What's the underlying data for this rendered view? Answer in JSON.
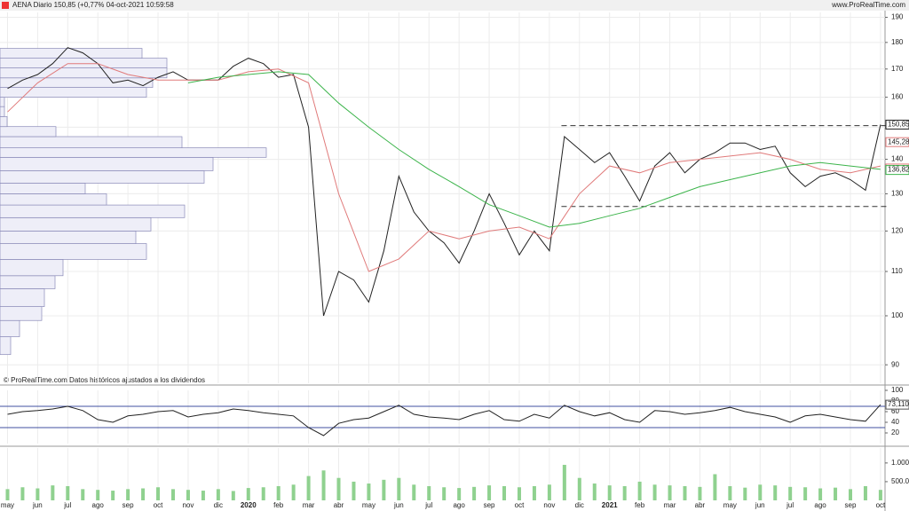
{
  "header": {
    "title": "AENA Diario 150,85 (+0,77% 04-oct-2021 10:59:58",
    "source": "www.ProRealTime.com"
  },
  "chart_data": [
    {
      "type": "line",
      "annotation": "© ProRealTime.com Datos históricos ajustados a los dividendos",
      "log_scale": true,
      "grid": true,
      "xlim": [
        -0.25,
        29.15
      ],
      "xticks": [
        {
          "value": 0,
          "label": "may"
        },
        {
          "value": 1,
          "label": "jun"
        },
        {
          "value": 2,
          "label": "jul"
        },
        {
          "value": 3,
          "label": "ago"
        },
        {
          "value": 4,
          "label": "sep"
        },
        {
          "value": 5,
          "label": "oct"
        },
        {
          "value": 6,
          "label": "nov"
        },
        {
          "value": 7,
          "label": "dic"
        },
        {
          "value": 8,
          "label": "2020"
        },
        {
          "value": 9,
          "label": "feb"
        },
        {
          "value": 10,
          "label": "mar"
        },
        {
          "value": 11,
          "label": "abr"
        },
        {
          "value": 12,
          "label": "may"
        },
        {
          "value": 13,
          "label": "jun"
        },
        {
          "value": 14,
          "label": "jul"
        },
        {
          "value": 15,
          "label": "ago"
        },
        {
          "value": 16,
          "label": "sep"
        },
        {
          "value": 17,
          "label": "oct"
        },
        {
          "value": 18,
          "label": "nov"
        },
        {
          "value": 19,
          "label": "dic"
        },
        {
          "value": 20,
          "label": "2021"
        },
        {
          "value": 21,
          "label": "feb"
        },
        {
          "value": 22,
          "label": "mar"
        },
        {
          "value": 23,
          "label": "abr"
        },
        {
          "value": 24,
          "label": "may"
        },
        {
          "value": 25,
          "label": "jun"
        },
        {
          "value": 26,
          "label": "jul"
        },
        {
          "value": 27,
          "label": "ago"
        },
        {
          "value": 28,
          "label": "sep"
        },
        {
          "value": 29,
          "label": "oct"
        }
      ],
      "ylim": [
        86.5,
        192
      ],
      "yticks": [
        90,
        100,
        110,
        120,
        130,
        140,
        150,
        160,
        170,
        180,
        190
      ],
      "series": [
        {
          "color": "#222222",
          "x": [
            0,
            0.5,
            1,
            1.5,
            2,
            2.5,
            3,
            3.5,
            4,
            4.5,
            5,
            5.5,
            6,
            6.5,
            7,
            7.5,
            8,
            8.5,
            9,
            9.5,
            10,
            10.5,
            11,
            11.5,
            12,
            12.5,
            13,
            13.5,
            14,
            14.5,
            15,
            15.5,
            16,
            16.5,
            17,
            17.5,
            18,
            18.5,
            19,
            19.5,
            20,
            20.5,
            21,
            21.5,
            22,
            22.5,
            23,
            23.5,
            24,
            24.5,
            25,
            25.5,
            26,
            26.5,
            27,
            27.5,
            28,
            28.5,
            29
          ],
          "values": [
            163,
            166,
            168,
            172,
            178,
            176,
            172,
            165,
            166,
            164,
            167,
            169,
            166,
            166,
            166,
            171,
            174,
            172,
            167,
            168,
            150,
            100,
            110,
            108,
            103,
            115,
            135,
            125,
            120,
            117,
            112,
            120,
            130,
            122,
            114,
            120,
            115,
            147,
            143,
            139,
            142,
            135,
            128,
            138,
            142,
            136,
            140,
            142,
            145,
            145,
            143,
            144,
            136,
            132,
            135,
            136,
            134,
            131,
            150.85
          ]
        },
        {
          "color": "#e07a7a",
          "x": [
            0,
            1,
            2,
            3,
            4,
            5,
            6,
            7,
            8,
            9,
            10,
            11,
            12,
            13,
            14,
            15,
            16,
            17,
            18,
            19,
            20,
            21,
            22,
            23,
            24,
            25,
            26,
            27,
            28,
            29
          ],
          "values": [
            155,
            165,
            172,
            172,
            168,
            166,
            166,
            166,
            169,
            170,
            165,
            130,
            110,
            113,
            120,
            118,
            120,
            121,
            118,
            130,
            138,
            136,
            139,
            140,
            141,
            142,
            140,
            137,
            136,
            138
          ]
        },
        {
          "color": "#3cb44b",
          "x": [
            6,
            7,
            8,
            9,
            10,
            11,
            12,
            13,
            14,
            15,
            16,
            17,
            18,
            19,
            20,
            21,
            22,
            23,
            24,
            25,
            26,
            27,
            28,
            29
          ],
          "values": [
            165,
            167,
            168,
            169,
            168,
            158,
            150,
            143,
            137,
            132,
            127,
            124,
            121,
            122,
            124,
            126,
            129,
            132,
            134,
            136,
            138,
            139,
            138,
            137
          ]
        }
      ],
      "hlines": [
        150.5,
        126.5
      ],
      "hline_x": [
        18.4,
        29.2
      ],
      "price_labels": [
        {
          "value": 150.85,
          "label": "150,85",
          "color": "#222222"
        },
        {
          "value": 145.28,
          "label": "145,28",
          "color": "#e07a7a"
        },
        {
          "value": 137.26,
          "label": "137,26",
          "color": "#e07a7a"
        },
        {
          "value": 136.82,
          "label": "136,82",
          "color": "#3cb44b"
        }
      ],
      "volume_profile": {
        "bins": [
          92,
          95.6,
          99,
          102,
          106,
          109,
          112.9,
          116.8,
          120,
          123.5,
          126.9,
          130,
          133,
          136.6,
          140.6,
          143.5,
          147,
          150.2,
          153.5,
          156.8,
          160,
          163.4,
          166.8,
          170.4,
          174,
          177.7
        ],
        "values": [
          12,
          22,
          47,
          50,
          62,
          71,
          165,
          153,
          170,
          208,
          120,
          96,
          230,
          240,
          300,
          205,
          63,
          8,
          5,
          5,
          165,
          172,
          188,
          188,
          160
        ]
      }
    },
    {
      "type": "line",
      "ylim": [
        0,
        100
      ],
      "yticks": [
        20,
        40,
        60,
        80,
        100
      ],
      "levels": [
        70,
        30
      ],
      "series": [
        {
          "color": "#222222",
          "x": [
            0,
            0.5,
            1,
            1.5,
            2,
            2.5,
            3,
            3.5,
            4,
            4.5,
            5,
            5.5,
            6,
            6.5,
            7,
            7.5,
            8,
            8.5,
            9,
            9.5,
            10,
            10.5,
            11,
            11.5,
            12,
            12.5,
            13,
            13.5,
            14,
            14.5,
            15,
            15.5,
            16,
            16.5,
            17,
            17.5,
            18,
            18.5,
            19,
            19.5,
            20,
            20.5,
            21,
            21.5,
            22,
            22.5,
            23,
            23.5,
            24,
            24.5,
            25,
            25.5,
            26,
            26.5,
            27,
            27.5,
            28,
            28.5,
            29
          ],
          "values": [
            55,
            60,
            62,
            65,
            70,
            62,
            45,
            40,
            52,
            55,
            60,
            62,
            50,
            55,
            58,
            65,
            62,
            58,
            55,
            52,
            30,
            15,
            38,
            45,
            48,
            60,
            72,
            55,
            50,
            48,
            45,
            55,
            62,
            45,
            42,
            55,
            48,
            72,
            60,
            52,
            58,
            45,
            40,
            62,
            60,
            55,
            58,
            62,
            68,
            60,
            55,
            50,
            40,
            52,
            55,
            50,
            45,
            42,
            73.11
          ],
          "last_label": "73,110"
        }
      ]
    },
    {
      "type": "bar",
      "ylim": [
        0,
        1400000
      ],
      "color": "#8fd18f",
      "yticks": [
        {
          "value": 500000,
          "label": "500.000"
        },
        {
          "value": 1000000,
          "label": "1.000k"
        }
      ],
      "x": [
        0,
        0.5,
        1,
        1.5,
        2,
        2.5,
        3,
        3.5,
        4,
        4.5,
        5,
        5.5,
        6,
        6.5,
        7,
        7.5,
        8,
        8.5,
        9,
        9.5,
        10,
        10.5,
        11,
        11.5,
        12,
        12.5,
        13,
        13.5,
        14,
        14.5,
        15,
        15.5,
        16,
        16.5,
        17,
        17.5,
        18,
        18.5,
        19,
        19.5,
        20,
        20.5,
        21,
        21.5,
        22,
        22.5,
        23,
        23.5,
        24,
        24.5,
        25,
        25.5,
        26,
        26.5,
        27,
        27.5,
        28,
        28.5,
        29
      ],
      "values": [
        300000,
        350000,
        320000,
        400000,
        380000,
        300000,
        280000,
        260000,
        300000,
        320000,
        350000,
        300000,
        280000,
        260000,
        300000,
        250000,
        330000,
        350000,
        380000,
        420000,
        650000,
        800000,
        600000,
        500000,
        450000,
        550000,
        600000,
        420000,
        380000,
        350000,
        330000,
        360000,
        400000,
        380000,
        350000,
        380000,
        420000,
        950000,
        600000,
        450000,
        400000,
        380000,
        500000,
        420000,
        400000,
        380000,
        360000,
        700000,
        380000,
        340000,
        420000,
        400000,
        360000,
        350000,
        320000,
        340000,
        300000,
        380000,
        280000
      ]
    }
  ]
}
